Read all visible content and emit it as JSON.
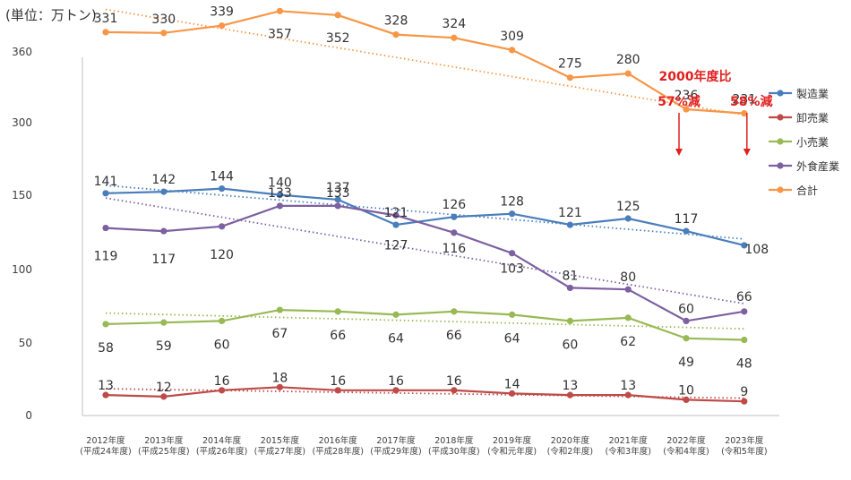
{
  "chart_data": {
    "type": "line",
    "unit_label": "(単位：万トン)",
    "y_ticks": [
      "360",
      "300",
      "150",
      "100",
      "50",
      "0"
    ],
    "ylim": [
      0,
      360
    ],
    "categories": [
      [
        "2012年度",
        "(平成24年度)"
      ],
      [
        "2013年度",
        "(平成25年度)"
      ],
      [
        "2014年度",
        "(平成26年度)"
      ],
      [
        "2015年度",
        "(平成27年度)"
      ],
      [
        "2016年度",
        "(平成28年度)"
      ],
      [
        "2017年度",
        "(平成29年度)"
      ],
      [
        "2018年度",
        "(平成30年度)"
      ],
      [
        "2019年度",
        "(令和元年度)"
      ],
      [
        "2020年度",
        "(令和2年度)"
      ],
      [
        "2021年度",
        "(令和3年度)"
      ],
      [
        "2022年度",
        "(令和4年度)"
      ],
      [
        "2023年度",
        "(令和5年度)"
      ]
    ],
    "series": [
      {
        "name": "製造業",
        "color": "#4a7ebb",
        "values": [
          141,
          142,
          144,
          140,
          137,
          121,
          126,
          128,
          121,
          125,
          117,
          108
        ],
        "trend": [
          146,
          112
        ]
      },
      {
        "name": "卸売業",
        "color": "#be4b48",
        "values": [
          13,
          12,
          16,
          18,
          16,
          16,
          16,
          14,
          13,
          13,
          10,
          9
        ],
        "trend": [
          17,
          11
        ]
      },
      {
        "name": "小売業",
        "color": "#98b954",
        "values": [
          58,
          59,
          60,
          67,
          66,
          64,
          66,
          64,
          60,
          62,
          49,
          48
        ],
        "trend": [
          65,
          55
        ]
      },
      {
        "name": "外食産業",
        "color": "#7d60a0",
        "values": [
          119,
          117,
          120,
          133,
          133,
          127,
          116,
          103,
          81,
          80,
          60,
          66
        ],
        "trend": [
          138,
          71
        ]
      },
      {
        "name": "合計",
        "color": "#f79646",
        "values": [
          331,
          330,
          339,
          357,
          352,
          328,
          324,
          309,
          275,
          280,
          236,
          231
        ],
        "trend": [
          359,
          229
        ]
      }
    ],
    "annotation": {
      "title": "2000年度比",
      "items": [
        "57%減",
        "58%減"
      ],
      "color": "#e0201f"
    }
  }
}
